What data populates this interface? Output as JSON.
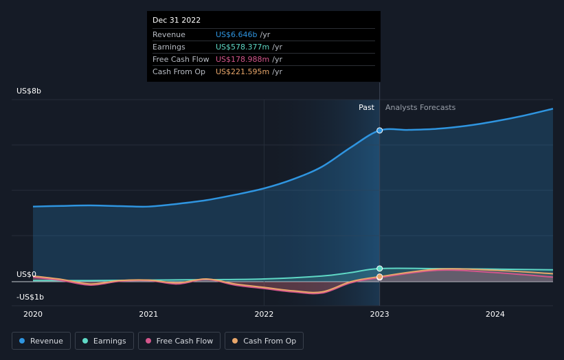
{
  "chart_data": {
    "type": "line",
    "x_ticks": [
      "2020",
      "2021",
      "2022",
      "2023",
      "2024"
    ],
    "y_ticks": [
      "US$8b",
      "US$0",
      "-US$1b"
    ],
    "xlim": [
      2020.0,
      2024.5
    ],
    "ylim": [
      -1.0,
      8.0
    ],
    "grid": true,
    "divider_x": 2023.0,
    "past_label": "Past",
    "forecast_label": "Analysts Forecasts",
    "series": [
      {
        "name": "Revenue",
        "color": "#2f95e0",
        "x": [
          2020.0,
          2020.25,
          2020.5,
          2020.75,
          2021.0,
          2021.25,
          2021.5,
          2021.75,
          2022.0,
          2022.25,
          2022.5,
          2022.75,
          2023.0,
          2023.25,
          2023.5,
          2023.75,
          2024.0,
          2024.25,
          2024.5
        ],
        "values": [
          3.3,
          3.33,
          3.35,
          3.32,
          3.3,
          3.42,
          3.58,
          3.82,
          4.1,
          4.5,
          5.05,
          5.9,
          6.646,
          6.67,
          6.72,
          6.85,
          7.05,
          7.3,
          7.6
        ]
      },
      {
        "name": "Earnings",
        "color": "#5fd9c6",
        "x": [
          2020.0,
          2020.5,
          2021.0,
          2021.5,
          2022.0,
          2022.5,
          2022.75,
          2023.0,
          2023.5,
          2024.0,
          2024.5
        ],
        "values": [
          0.05,
          0.05,
          0.07,
          0.09,
          0.12,
          0.25,
          0.4,
          0.578,
          0.575,
          0.55,
          0.52
        ]
      },
      {
        "name": "Free Cash Flow",
        "color": "#d4568c",
        "x": [
          2020.0,
          2020.25,
          2020.5,
          2020.75,
          2021.0,
          2021.25,
          2021.5,
          2021.75,
          2022.0,
          2022.25,
          2022.5,
          2022.75,
          2023.0,
          2023.5,
          2024.0,
          2024.5
        ],
        "values": [
          0.2,
          0.05,
          -0.15,
          0.02,
          0.05,
          -0.1,
          0.1,
          -0.15,
          -0.3,
          -0.45,
          -0.5,
          -0.05,
          0.179,
          0.5,
          0.4,
          0.2
        ]
      },
      {
        "name": "Cash From Op",
        "color": "#e8a66a",
        "x": [
          2020.0,
          2020.25,
          2020.5,
          2020.75,
          2021.0,
          2021.25,
          2021.5,
          2021.75,
          2022.0,
          2022.25,
          2022.5,
          2022.75,
          2023.0,
          2023.5,
          2024.0,
          2024.5
        ],
        "values": [
          0.25,
          0.1,
          -0.1,
          0.05,
          0.07,
          -0.05,
          0.12,
          -0.1,
          -0.25,
          -0.4,
          -0.45,
          0.0,
          0.222,
          0.55,
          0.5,
          0.35
        ]
      }
    ]
  },
  "tooltip": {
    "date": "Dec 31 2022",
    "unit": "/yr",
    "rows": [
      {
        "name": "Revenue",
        "value": "US$6.646b",
        "color": "#2f95e0"
      },
      {
        "name": "Earnings",
        "value": "US$578.377m",
        "color": "#5fd9c6"
      },
      {
        "name": "Free Cash Flow",
        "value": "US$178.988m",
        "color": "#d4568c"
      },
      {
        "name": "Cash From Op",
        "value": "US$221.595m",
        "color": "#e8a66a"
      }
    ]
  },
  "legend": [
    {
      "label": "Revenue",
      "color": "#2f95e0"
    },
    {
      "label": "Earnings",
      "color": "#5fd9c6"
    },
    {
      "label": "Free Cash Flow",
      "color": "#d4568c"
    },
    {
      "label": "Cash From Op",
      "color": "#e8a66a"
    }
  ]
}
